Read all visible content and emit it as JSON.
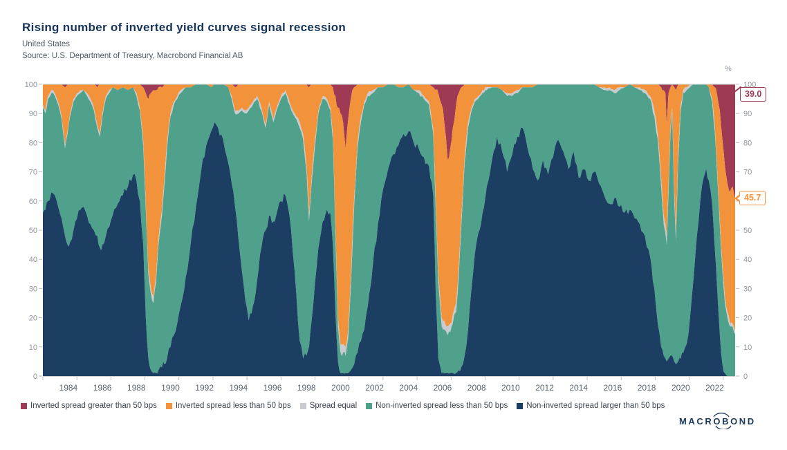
{
  "header": {
    "title": "Rising number of inverted yield curves signal recession",
    "subtitle": "United States",
    "source": "Source: U.S. Department of Treasury, Macrobond Financial AB"
  },
  "chart_data": {
    "type": "area",
    "stacked_percent": true,
    "title": "Rising number of inverted yield curves signal recession",
    "x_domain": [
      1983.0,
      2023.7
    ],
    "y_axis": {
      "ticks": [
        0,
        10,
        20,
        30,
        40,
        50,
        60,
        70,
        80,
        90,
        100
      ],
      "unit": "%",
      "range": [
        0,
        100
      ]
    },
    "x_axis": {
      "label_years": [
        1984,
        1986,
        1988,
        1990,
        1992,
        1994,
        1996,
        1998,
        2000,
        2002,
        2004,
        2006,
        2008,
        2010,
        2012,
        2014,
        2016,
        2018,
        2020,
        2022
      ],
      "tick_years": [
        1983,
        1985,
        1987,
        1989,
        1991,
        1993,
        1995,
        1997,
        1999,
        2001,
        2003,
        2005,
        2007,
        2009,
        2011,
        2013,
        2015,
        2017,
        2019,
        2021,
        2023
      ]
    },
    "series": [
      {
        "key": "inverted-gt-50",
        "label": "Inverted spread greater than 50 bps",
        "color": "#9E3A54"
      },
      {
        "key": "inverted-lt-50",
        "label": "Inverted spread less than 50 bps",
        "color": "#F2923B"
      },
      {
        "key": "spread-equal",
        "label": "Spread equal",
        "color": "#C9CBCE"
      },
      {
        "key": "non-inverted-lt-50",
        "label": "Non-inverted spread less than 50 bps",
        "color": "#4FA18C"
      },
      {
        "key": "non-inverted-gt-50",
        "label": "Non-inverted spread larger than 50 bps",
        "color": "#1D3E63"
      }
    ],
    "samples_format": "[year, inverted_gt_50_pct, inverted_lt_50_pct, spread_equal_pct, non_inverted_gt_50_pct]; non_inverted_lt_50_pct = 100 minus the sum",
    "samples": [
      [
        1983.0,
        0,
        7,
        1,
        56
      ],
      [
        1983.15,
        0,
        9,
        1,
        57
      ],
      [
        1983.3,
        0,
        4,
        1,
        60
      ],
      [
        1983.5,
        0,
        2,
        1,
        63
      ],
      [
        1983.7,
        0,
        3,
        1,
        62
      ],
      [
        1983.9,
        0,
        6,
        1,
        58
      ],
      [
        1984.1,
        0,
        11,
        1,
        54
      ],
      [
        1984.3,
        1,
        20,
        1,
        48
      ],
      [
        1984.45,
        0,
        16,
        1,
        45
      ],
      [
        1984.6,
        0,
        10,
        1,
        46
      ],
      [
        1984.8,
        0,
        5,
        1,
        50
      ],
      [
        1985.0,
        0,
        3,
        1,
        54
      ],
      [
        1985.2,
        0,
        2,
        1,
        57
      ],
      [
        1985.4,
        0,
        2,
        0,
        58
      ],
      [
        1985.6,
        0,
        3,
        1,
        55
      ],
      [
        1985.8,
        0,
        5,
        1,
        52
      ],
      [
        1986.0,
        0,
        8,
        1,
        50
      ],
      [
        1986.2,
        1,
        13,
        1,
        48
      ],
      [
        1986.35,
        0,
        17,
        1,
        44
      ],
      [
        1986.5,
        0,
        10,
        1,
        45
      ],
      [
        1986.7,
        0,
        4,
        1,
        48
      ],
      [
        1986.9,
        0,
        2,
        1,
        51
      ],
      [
        1987.1,
        0,
        1,
        0,
        55
      ],
      [
        1987.4,
        0,
        2,
        0,
        59
      ],
      [
        1987.7,
        0,
        1,
        0,
        62
      ],
      [
        1988.0,
        0,
        2,
        0,
        65
      ],
      [
        1988.3,
        0,
        1,
        0,
        69
      ],
      [
        1988.5,
        0,
        3,
        1,
        67
      ],
      [
        1988.7,
        0,
        8,
        1,
        60
      ],
      [
        1988.9,
        1,
        18,
        2,
        45
      ],
      [
        1989.05,
        3,
        38,
        2,
        20
      ],
      [
        1989.2,
        5,
        58,
        2,
        6
      ],
      [
        1989.35,
        3,
        67,
        2,
        2
      ],
      [
        1989.5,
        2,
        71,
        2,
        1
      ],
      [
        1989.65,
        2,
        64,
        2,
        1
      ],
      [
        1989.8,
        1,
        52,
        2,
        2
      ],
      [
        1990.0,
        1,
        42,
        2,
        3
      ],
      [
        1990.15,
        0,
        32,
        2,
        4
      ],
      [
        1990.3,
        0,
        20,
        2,
        6
      ],
      [
        1990.5,
        0,
        10,
        1,
        10
      ],
      [
        1990.7,
        0,
        6,
        1,
        14
      ],
      [
        1990.9,
        0,
        4,
        1,
        18
      ],
      [
        1991.1,
        0,
        2,
        1,
        24
      ],
      [
        1991.4,
        0,
        1,
        0,
        34
      ],
      [
        1991.7,
        0,
        1,
        0,
        46
      ],
      [
        1992.0,
        0,
        0,
        0,
        58
      ],
      [
        1992.3,
        0,
        0,
        0,
        70
      ],
      [
        1992.6,
        0,
        0,
        0,
        79
      ],
      [
        1992.9,
        0,
        1,
        0,
        84
      ],
      [
        1993.1,
        0,
        0,
        0,
        87
      ],
      [
        1993.3,
        0,
        0,
        0,
        85
      ],
      [
        1993.6,
        0,
        0,
        0,
        81
      ],
      [
        1993.9,
        0,
        1,
        0,
        73
      ],
      [
        1994.1,
        0,
        4,
        1,
        66
      ],
      [
        1994.3,
        1,
        8,
        1,
        58
      ],
      [
        1994.5,
        0,
        9,
        1,
        47
      ],
      [
        1994.7,
        0,
        8,
        1,
        36
      ],
      [
        1994.9,
        0,
        9,
        1,
        26
      ],
      [
        1995.1,
        0,
        8,
        1,
        19
      ],
      [
        1995.35,
        0,
        6,
        1,
        24
      ],
      [
        1995.6,
        0,
        4,
        1,
        33
      ],
      [
        1995.85,
        0,
        8,
        1,
        44
      ],
      [
        1996.1,
        0,
        14,
        1,
        50
      ],
      [
        1996.3,
        0,
        6,
        1,
        55
      ],
      [
        1996.55,
        0,
        12,
        1,
        53
      ],
      [
        1996.8,
        0,
        7,
        1,
        57
      ],
      [
        1997.0,
        0,
        4,
        1,
        60
      ],
      [
        1997.25,
        0,
        2,
        1,
        62
      ],
      [
        1997.5,
        0,
        6,
        1,
        55
      ],
      [
        1997.7,
        0,
        9,
        1,
        42
      ],
      [
        1997.9,
        0,
        11,
        1,
        28
      ],
      [
        1998.1,
        0,
        13,
        2,
        12
      ],
      [
        1998.3,
        0,
        17,
        2,
        6
      ],
      [
        1998.5,
        0,
        28,
        2,
        7
      ],
      [
        1998.65,
        1,
        44,
        2,
        10
      ],
      [
        1998.8,
        0,
        32,
        2,
        19
      ],
      [
        1999.0,
        0,
        19,
        2,
        32
      ],
      [
        1999.2,
        0,
        9,
        1,
        44
      ],
      [
        1999.45,
        0,
        4,
        1,
        53
      ],
      [
        1999.7,
        0,
        5,
        1,
        57
      ],
      [
        1999.9,
        0,
        8,
        1,
        56
      ],
      [
        2000.05,
        1,
        16,
        2,
        45
      ],
      [
        2000.2,
        4,
        45,
        3,
        22
      ],
      [
        2000.35,
        8,
        72,
        3,
        5
      ],
      [
        2000.5,
        10,
        79,
        3,
        1
      ],
      [
        2000.65,
        13,
        76,
        3,
        1
      ],
      [
        2000.8,
        22,
        68,
        3,
        1
      ],
      [
        2000.95,
        12,
        72,
        3,
        1
      ],
      [
        2001.1,
        5,
        62,
        3,
        2
      ],
      [
        2001.3,
        1,
        38,
        3,
        4
      ],
      [
        2001.5,
        0,
        20,
        2,
        8
      ],
      [
        2001.7,
        0,
        11,
        2,
        12
      ],
      [
        2001.9,
        0,
        6,
        1,
        16
      ],
      [
        2002.1,
        0,
        3,
        1,
        24
      ],
      [
        2002.4,
        0,
        2,
        1,
        38
      ],
      [
        2002.7,
        0,
        1,
        0,
        52
      ],
      [
        2003.0,
        0,
        1,
        0,
        64
      ],
      [
        2003.3,
        0,
        0,
        0,
        71
      ],
      [
        2003.6,
        0,
        0,
        0,
        76
      ],
      [
        2003.9,
        0,
        1,
        0,
        79
      ],
      [
        2004.2,
        0,
        1,
        0,
        83
      ],
      [
        2004.5,
        0,
        0,
        0,
        84
      ],
      [
        2004.8,
        0,
        2,
        0,
        80
      ],
      [
        2005.1,
        0,
        2,
        1,
        78
      ],
      [
        2005.4,
        0,
        4,
        1,
        75
      ],
      [
        2005.7,
        0,
        6,
        1,
        72
      ],
      [
        2005.95,
        1,
        14,
        2,
        62
      ],
      [
        2006.1,
        2,
        38,
        3,
        28
      ],
      [
        2006.25,
        3,
        62,
        3,
        6
      ],
      [
        2006.45,
        7,
        73,
        3,
        1
      ],
      [
        2006.6,
        13,
        68,
        3,
        1
      ],
      [
        2006.8,
        26,
        57,
        3,
        1
      ],
      [
        2006.95,
        22,
        60,
        3,
        1
      ],
      [
        2007.1,
        15,
        64,
        3,
        1
      ],
      [
        2007.3,
        7,
        68,
        3,
        1
      ],
      [
        2007.45,
        3,
        60,
        3,
        2
      ],
      [
        2007.6,
        1,
        45,
        3,
        3
      ],
      [
        2007.8,
        0,
        25,
        2,
        7
      ],
      [
        2008.0,
        0,
        13,
        2,
        16
      ],
      [
        2008.2,
        0,
        8,
        1,
        30
      ],
      [
        2008.4,
        0,
        5,
        1,
        42
      ],
      [
        2008.6,
        0,
        4,
        1,
        49
      ],
      [
        2008.85,
        0,
        2,
        1,
        56
      ],
      [
        2009.1,
        0,
        1,
        1,
        65
      ],
      [
        2009.4,
        0,
        1,
        0,
        74
      ],
      [
        2009.7,
        0,
        1,
        0,
        82
      ],
      [
        2010.0,
        0,
        2,
        0,
        77
      ],
      [
        2010.3,
        0,
        3,
        1,
        70
      ],
      [
        2010.6,
        0,
        3,
        1,
        76
      ],
      [
        2010.9,
        0,
        2,
        1,
        82
      ],
      [
        2011.2,
        0,
        1,
        0,
        85
      ],
      [
        2011.5,
        0,
        1,
        0,
        78
      ],
      [
        2011.8,
        0,
        1,
        0,
        71
      ],
      [
        2012.1,
        0,
        0,
        0,
        67
      ],
      [
        2012.4,
        0,
        0,
        0,
        74
      ],
      [
        2012.7,
        0,
        0,
        0,
        69
      ],
      [
        2013.0,
        0,
        0,
        0,
        75
      ],
      [
        2013.3,
        0,
        0,
        0,
        81
      ],
      [
        2013.6,
        0,
        0,
        0,
        77
      ],
      [
        2013.9,
        0,
        0,
        0,
        71
      ],
      [
        2014.2,
        0,
        0,
        0,
        77
      ],
      [
        2014.5,
        0,
        0,
        0,
        68
      ],
      [
        2014.8,
        0,
        0,
        0,
        71
      ],
      [
        2015.1,
        0,
        0,
        0,
        67
      ],
      [
        2015.4,
        0,
        0,
        0,
        70
      ],
      [
        2015.7,
        0,
        1,
        0,
        66
      ],
      [
        2016.0,
        0,
        1,
        1,
        62
      ],
      [
        2016.3,
        0,
        1,
        1,
        59
      ],
      [
        2016.6,
        0,
        2,
        1,
        61
      ],
      [
        2016.9,
        0,
        1,
        1,
        58
      ],
      [
        2017.2,
        0,
        1,
        0,
        56
      ],
      [
        2017.5,
        0,
        0,
        0,
        57
      ],
      [
        2017.8,
        0,
        1,
        0,
        54
      ],
      [
        2018.1,
        0,
        1,
        1,
        52
      ],
      [
        2018.4,
        0,
        2,
        1,
        48
      ],
      [
        2018.7,
        0,
        4,
        1,
        41
      ],
      [
        2018.95,
        0,
        9,
        2,
        30
      ],
      [
        2019.15,
        0,
        17,
        2,
        18
      ],
      [
        2019.35,
        1,
        31,
        3,
        10
      ],
      [
        2019.5,
        2,
        43,
        3,
        7
      ],
      [
        2019.6,
        3,
        45,
        3,
        6
      ],
      [
        2019.68,
        14,
        38,
        3,
        5
      ],
      [
        2019.78,
        3,
        32,
        3,
        6
      ],
      [
        2019.9,
        1,
        14,
        2,
        7
      ],
      [
        2020.0,
        0,
        8,
        2,
        7
      ],
      [
        2020.12,
        1,
        36,
        3,
        5
      ],
      [
        2020.22,
        2,
        49,
        3,
        4
      ],
      [
        2020.35,
        0,
        24,
        3,
        5
      ],
      [
        2020.5,
        0,
        7,
        2,
        6
      ],
      [
        2020.65,
        0,
        2,
        1,
        8
      ],
      [
        2020.85,
        0,
        1,
        1,
        11
      ],
      [
        2021.05,
        0,
        0,
        1,
        20
      ],
      [
        2021.25,
        0,
        0,
        0,
        33
      ],
      [
        2021.45,
        0,
        0,
        0,
        48
      ],
      [
        2021.65,
        0,
        0,
        0,
        60
      ],
      [
        2021.85,
        0,
        0,
        0,
        68
      ],
      [
        2022.0,
        0,
        0,
        0,
        71
      ],
      [
        2022.15,
        0,
        1,
        0,
        67
      ],
      [
        2022.35,
        0,
        5,
        1,
        59
      ],
      [
        2022.5,
        1,
        13,
        2,
        44
      ],
      [
        2022.65,
        4,
        26,
        2,
        29
      ],
      [
        2022.8,
        9,
        38,
        2,
        14
      ],
      [
        2022.95,
        19,
        43,
        2,
        4
      ],
      [
        2023.1,
        28,
        45,
        2,
        1
      ],
      [
        2023.25,
        34,
        44,
        2,
        0
      ],
      [
        2023.4,
        37,
        45,
        1,
        0
      ],
      [
        2023.55,
        35,
        47,
        1,
        0
      ],
      [
        2023.7,
        39,
        45.7,
        1,
        0
      ]
    ],
    "annotations": [
      {
        "label": "39.0",
        "series": "inverted-gt-50",
        "color": "#9E3A54"
      },
      {
        "label": "45.7",
        "series": "inverted-lt-50",
        "color": "#F2923B"
      }
    ],
    "legend_position": "bottom"
  },
  "logo": {
    "text": "MACROBOND"
  }
}
